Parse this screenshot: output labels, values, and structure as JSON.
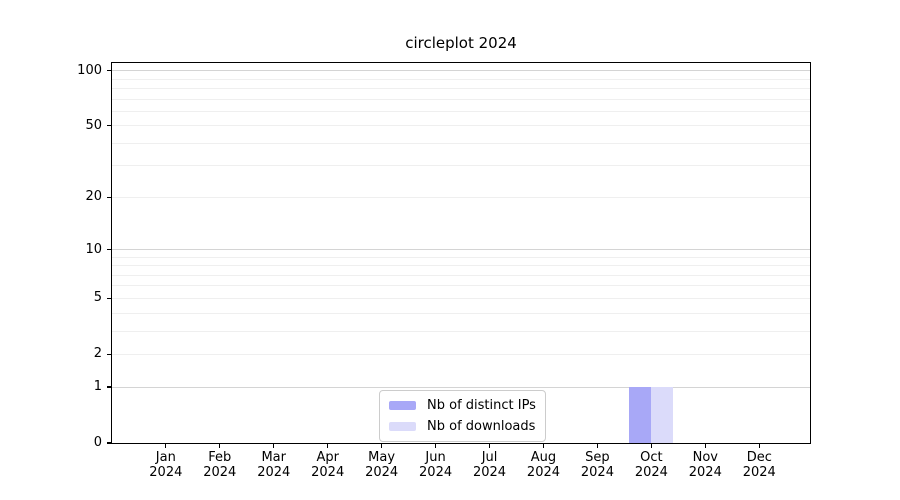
{
  "chart_data": {
    "type": "bar",
    "title": "circleplot 2024",
    "scale": "log1p",
    "xlabel": "",
    "ylabel": "",
    "year": "2024",
    "categories": [
      "Jan",
      "Feb",
      "Mar",
      "Apr",
      "May",
      "Jun",
      "Jul",
      "Aug",
      "Sep",
      "Oct",
      "Nov",
      "Dec"
    ],
    "series": [
      {
        "name": "Nb of distinct IPs",
        "color": "#a8a8f7",
        "values": [
          0,
          0,
          0,
          0,
          0,
          0,
          0,
          0,
          0,
          1,
          0,
          0
        ]
      },
      {
        "name": "Nb of downloads",
        "color": "#dbdbfa",
        "values": [
          0,
          0,
          0,
          0,
          0,
          0,
          0,
          0,
          0,
          1,
          0,
          0
        ]
      }
    ],
    "yticks": [
      0,
      1,
      2,
      5,
      10,
      20,
      50,
      100
    ],
    "ylim": [
      0,
      110
    ],
    "major_gridlines": [
      1,
      10,
      100
    ],
    "minor_gridlines": [
      2,
      3,
      4,
      5,
      6,
      7,
      8,
      9,
      20,
      30,
      40,
      50,
      60,
      70,
      80,
      90
    ],
    "legend_position": "lower-center-left",
    "grid": "on"
  }
}
